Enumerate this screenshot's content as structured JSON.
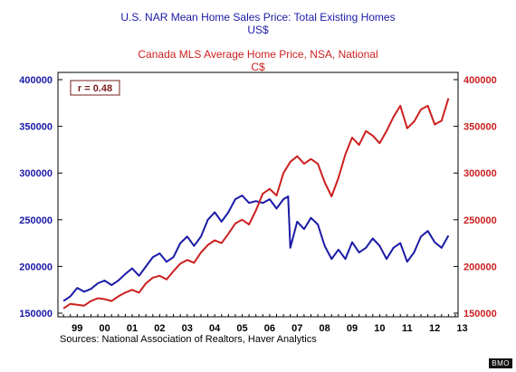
{
  "titles": {
    "us_line1": "U.S. NAR Mean Home Sales Price: Total Existing Homes",
    "us_line2": "US$",
    "ca_line1": "Canada MLS Average Home Price, NSA, National",
    "ca_line2": "C$"
  },
  "source": "Sources:  National Association of Realtors, Haver Analytics",
  "credit": "BMO",
  "colors": {
    "us": "#1a1aa6",
    "ca": "#cc1f1f",
    "axis": "#000000",
    "annotation": "#7a1f1f"
  },
  "chart_data": {
    "type": "line",
    "annotation": "r = 0.48",
    "x_tick_labels": [
      "99",
      "00",
      "01",
      "02",
      "03",
      "04",
      "05",
      "06",
      "07",
      "08",
      "09",
      "10",
      "11",
      "12",
      "13"
    ],
    "left_axis": {
      "ylim": [
        150000,
        400000
      ],
      "ticks": [
        "400000",
        "350000",
        "300000",
        "250000",
        "200000",
        "150000"
      ]
    },
    "right_axis": {
      "ylim": [
        150000,
        400000
      ],
      "ticks": [
        "400000",
        "350000",
        "300000",
        "250000",
        "200000",
        "150000"
      ]
    },
    "grid": false,
    "series": [
      {
        "name": "U.S. NAR Mean Home Sales Price: Total Existing Homes",
        "axis": "left",
        "color": "#1a1aa6",
        "x": [
          1999.0,
          1999.25,
          1999.5,
          1999.75,
          2000.0,
          2000.25,
          2000.5,
          2000.75,
          2001.0,
          2001.25,
          2001.5,
          2001.75,
          2002.0,
          2002.25,
          2002.5,
          2002.75,
          2003.0,
          2003.25,
          2003.5,
          2003.75,
          2004.0,
          2004.25,
          2004.5,
          2004.75,
          2005.0,
          2005.25,
          2005.5,
          2005.75,
          2006.0,
          2006.25,
          2006.5,
          2006.75,
          2007.0,
          2007.17,
          2007.25,
          2007.5,
          2007.75,
          2008.0,
          2008.25,
          2008.5,
          2008.75,
          2009.0,
          2009.25,
          2009.5,
          2009.75,
          2010.0,
          2010.25,
          2010.5,
          2010.75,
          2011.0,
          2011.25,
          2011.5,
          2011.75,
          2012.0,
          2012.25,
          2012.5,
          2012.75,
          2013.0
        ],
        "values": [
          163000,
          168000,
          177000,
          173000,
          176000,
          182000,
          185000,
          180000,
          185000,
          192000,
          198000,
          190000,
          200000,
          210000,
          214000,
          205000,
          210000,
          225000,
          232000,
          222000,
          232000,
          250000,
          258000,
          248000,
          258000,
          272000,
          276000,
          268000,
          270000,
          268000,
          272000,
          262000,
          272000,
          275000,
          220000,
          248000,
          240000,
          252000,
          245000,
          222000,
          208000,
          218000,
          208000,
          226000,
          215000,
          220000,
          230000,
          222000,
          208000,
          220000,
          225000,
          205000,
          215000,
          232000,
          238000,
          226000,
          220000,
          233000
        ]
      },
      {
        "name": "Canada MLS Average Home Price, NSA, National",
        "axis": "right",
        "color": "#cc1f1f",
        "x": [
          1999.0,
          1999.25,
          1999.5,
          1999.75,
          2000.0,
          2000.25,
          2000.5,
          2000.75,
          2001.0,
          2001.25,
          2001.5,
          2001.75,
          2002.0,
          2002.25,
          2002.5,
          2002.75,
          2003.0,
          2003.25,
          2003.5,
          2003.75,
          2004.0,
          2004.25,
          2004.5,
          2004.75,
          2005.0,
          2005.25,
          2005.5,
          2005.75,
          2006.0,
          2006.25,
          2006.5,
          2006.75,
          2007.0,
          2007.25,
          2007.5,
          2007.75,
          2008.0,
          2008.25,
          2008.5,
          2008.75,
          2009.0,
          2009.25,
          2009.5,
          2009.75,
          2010.0,
          2010.25,
          2010.5,
          2010.75,
          2011.0,
          2011.25,
          2011.5,
          2011.75,
          2012.0,
          2012.25,
          2012.5,
          2012.75,
          2013.0
        ],
        "values": [
          155000,
          160000,
          159000,
          158000,
          163000,
          166000,
          165000,
          163000,
          168000,
          172000,
          175000,
          172000,
          182000,
          188000,
          190000,
          186000,
          195000,
          203000,
          207000,
          204000,
          215000,
          223000,
          228000,
          225000,
          235000,
          246000,
          250000,
          245000,
          260000,
          278000,
          283000,
          276000,
          300000,
          312000,
          318000,
          310000,
          315000,
          310000,
          290000,
          275000,
          295000,
          320000,
          338000,
          330000,
          345000,
          340000,
          332000,
          345000,
          360000,
          372000,
          348000,
          355000,
          368000,
          372000,
          352000,
          356000,
          380000
        ]
      }
    ]
  }
}
